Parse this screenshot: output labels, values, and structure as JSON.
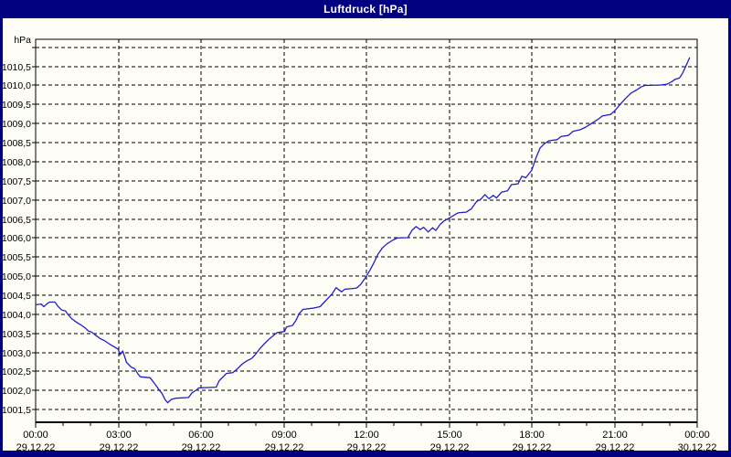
{
  "window": {
    "title": "Luftdruck [hPa]"
  },
  "colors": {
    "background": "#000080",
    "panel": "#FDFDF6",
    "grid": "#000000",
    "axis": "#000000",
    "label_text": "#000000",
    "title_text": "#FFFFFF",
    "line": "#2020C8"
  },
  "chart_data": {
    "type": "line",
    "title": "Luftdruck [hPa]",
    "unit_label": "hPa",
    "grid": "dashed",
    "legend_position": "none",
    "x_axis": {
      "min_hours": 0,
      "max_hours": 24,
      "major_tick_hours": 3,
      "minor_tick_hours": 1,
      "ticks": [
        {
          "t": 0,
          "time": "00:00",
          "date": "29.12.22"
        },
        {
          "t": 3,
          "time": "03:00",
          "date": "29.12.22"
        },
        {
          "t": 6,
          "time": "06:00",
          "date": "29.12.22"
        },
        {
          "t": 9,
          "time": "09:00",
          "date": "29.12.22"
        },
        {
          "t": 12,
          "time": "12:00",
          "date": "29.12.22"
        },
        {
          "t": 15,
          "time": "15:00",
          "date": "29.12.22"
        },
        {
          "t": 18,
          "time": "18:00",
          "date": "29.12.22"
        },
        {
          "t": 21,
          "time": "21:00",
          "date": "29.12.22"
        },
        {
          "t": 24,
          "time": "00:00",
          "date": "30.12.22"
        }
      ]
    },
    "y_axis": {
      "min": 1001.17,
      "max": 1011.21,
      "grid_step": 0.5,
      "ticks": [
        {
          "value": 1011.0,
          "label": ""
        },
        {
          "value": 1010.5,
          "label": "1010,5"
        },
        {
          "value": 1010.0,
          "label": "1010,0"
        },
        {
          "value": 1009.5,
          "label": "1009,5"
        },
        {
          "value": 1009.0,
          "label": "1009,0"
        },
        {
          "value": 1008.5,
          "label": "1008,5"
        },
        {
          "value": 1008.0,
          "label": "1008,0"
        },
        {
          "value": 1007.5,
          "label": "1007,5"
        },
        {
          "value": 1007.0,
          "label": "1007,0"
        },
        {
          "value": 1006.5,
          "label": "1006,5"
        },
        {
          "value": 1006.0,
          "label": "1006,0"
        },
        {
          "value": 1005.5,
          "label": "1005,5"
        },
        {
          "value": 1005.0,
          "label": "1005,0"
        },
        {
          "value": 1004.5,
          "label": "1004,5"
        },
        {
          "value": 1004.0,
          "label": "1004,0"
        },
        {
          "value": 1003.5,
          "label": "1003,5"
        },
        {
          "value": 1003.0,
          "label": "1003,0"
        },
        {
          "value": 1002.5,
          "label": "1002,5"
        },
        {
          "value": 1002.0,
          "label": "1002,0"
        },
        {
          "value": 1001.5,
          "label": "1001,5"
        }
      ]
    },
    "series": [
      {
        "name": "Luftdruck",
        "unit": "hPa",
        "points": [
          [
            0.0,
            1004.25
          ],
          [
            0.2,
            1004.27
          ],
          [
            0.3,
            1004.2
          ],
          [
            0.42,
            1004.28
          ],
          [
            0.5,
            1004.32
          ],
          [
            0.7,
            1004.32
          ],
          [
            0.82,
            1004.2
          ],
          [
            0.95,
            1004.11
          ],
          [
            1.08,
            1004.09
          ],
          [
            1.2,
            1003.97
          ],
          [
            1.32,
            1003.88
          ],
          [
            1.45,
            1003.81
          ],
          [
            1.55,
            1003.76
          ],
          [
            1.65,
            1003.72
          ],
          [
            1.8,
            1003.64
          ],
          [
            1.92,
            1003.56
          ],
          [
            2.02,
            1003.54
          ],
          [
            2.2,
            1003.44
          ],
          [
            2.35,
            1003.36
          ],
          [
            2.52,
            1003.3
          ],
          [
            2.68,
            1003.22
          ],
          [
            2.85,
            1003.15
          ],
          [
            3.0,
            1003.08
          ],
          [
            3.06,
            1002.94
          ],
          [
            3.16,
            1003.04
          ],
          [
            3.3,
            1002.74
          ],
          [
            3.46,
            1002.62
          ],
          [
            3.6,
            1002.57
          ],
          [
            3.7,
            1002.45
          ],
          [
            3.8,
            1002.36
          ],
          [
            4.15,
            1002.34
          ],
          [
            4.3,
            1002.2
          ],
          [
            4.45,
            1002.05
          ],
          [
            4.58,
            1001.93
          ],
          [
            4.7,
            1001.76
          ],
          [
            4.79,
            1001.68
          ],
          [
            4.92,
            1001.77
          ],
          [
            5.08,
            1001.8
          ],
          [
            5.55,
            1001.82
          ],
          [
            5.67,
            1001.94
          ],
          [
            5.84,
            1002.02
          ],
          [
            5.92,
            1002.07
          ],
          [
            6.55,
            1002.09
          ],
          [
            6.66,
            1002.26
          ],
          [
            6.83,
            1002.38
          ],
          [
            6.92,
            1002.45
          ],
          [
            7.15,
            1002.47
          ],
          [
            7.33,
            1002.58
          ],
          [
            7.5,
            1002.7
          ],
          [
            7.66,
            1002.78
          ],
          [
            7.83,
            1002.84
          ],
          [
            7.99,
            1002.96
          ],
          [
            8.12,
            1003.09
          ],
          [
            8.3,
            1003.23
          ],
          [
            8.5,
            1003.37
          ],
          [
            8.66,
            1003.46
          ],
          [
            8.76,
            1003.52
          ],
          [
            9.03,
            1003.55
          ],
          [
            9.1,
            1003.67
          ],
          [
            9.32,
            1003.71
          ],
          [
            9.45,
            1003.85
          ],
          [
            9.56,
            1004.02
          ],
          [
            9.7,
            1004.13
          ],
          [
            10.05,
            1004.16
          ],
          [
            10.32,
            1004.2
          ],
          [
            10.46,
            1004.31
          ],
          [
            10.6,
            1004.42
          ],
          [
            10.76,
            1004.54
          ],
          [
            10.9,
            1004.7
          ],
          [
            11.1,
            1004.59
          ],
          [
            11.22,
            1004.66
          ],
          [
            11.45,
            1004.67
          ],
          [
            11.65,
            1004.69
          ],
          [
            11.8,
            1004.79
          ],
          [
            12.0,
            1005.0
          ],
          [
            12.14,
            1005.17
          ],
          [
            12.28,
            1005.36
          ],
          [
            12.42,
            1005.58
          ],
          [
            12.58,
            1005.74
          ],
          [
            12.75,
            1005.85
          ],
          [
            12.97,
            1005.95
          ],
          [
            13.12,
            1006.0
          ],
          [
            13.5,
            1006.01
          ],
          [
            13.65,
            1006.2
          ],
          [
            13.8,
            1006.3
          ],
          [
            13.95,
            1006.22
          ],
          [
            14.08,
            1006.28
          ],
          [
            14.24,
            1006.16
          ],
          [
            14.4,
            1006.27
          ],
          [
            14.52,
            1006.2
          ],
          [
            14.68,
            1006.36
          ],
          [
            14.8,
            1006.44
          ],
          [
            15.0,
            1006.52
          ],
          [
            15.18,
            1006.6
          ],
          [
            15.32,
            1006.66
          ],
          [
            15.62,
            1006.68
          ],
          [
            15.8,
            1006.76
          ],
          [
            16.0,
            1006.96
          ],
          [
            16.15,
            1007.02
          ],
          [
            16.3,
            1007.14
          ],
          [
            16.45,
            1007.03
          ],
          [
            16.6,
            1007.12
          ],
          [
            16.72,
            1007.05
          ],
          [
            16.9,
            1007.2
          ],
          [
            17.12,
            1007.24
          ],
          [
            17.26,
            1007.4
          ],
          [
            17.5,
            1007.42
          ],
          [
            17.64,
            1007.62
          ],
          [
            17.78,
            1007.58
          ],
          [
            18.0,
            1007.78
          ],
          [
            18.15,
            1008.1
          ],
          [
            18.3,
            1008.36
          ],
          [
            18.45,
            1008.47
          ],
          [
            18.62,
            1008.55
          ],
          [
            18.92,
            1008.58
          ],
          [
            19.06,
            1008.66
          ],
          [
            19.32,
            1008.69
          ],
          [
            19.5,
            1008.8
          ],
          [
            19.76,
            1008.84
          ],
          [
            19.96,
            1008.91
          ],
          [
            20.16,
            1009.0
          ],
          [
            20.4,
            1009.11
          ],
          [
            20.56,
            1009.2
          ],
          [
            20.86,
            1009.24
          ],
          [
            21.0,
            1009.33
          ],
          [
            21.2,
            1009.5
          ],
          [
            21.4,
            1009.66
          ],
          [
            21.6,
            1009.8
          ],
          [
            21.8,
            1009.88
          ],
          [
            21.96,
            1009.96
          ],
          [
            22.1,
            1010.0
          ],
          [
            22.62,
            1010.01
          ],
          [
            22.9,
            1010.03
          ],
          [
            23.06,
            1010.09
          ],
          [
            23.2,
            1010.16
          ],
          [
            23.36,
            1010.2
          ],
          [
            23.46,
            1010.31
          ],
          [
            23.56,
            1010.46
          ],
          [
            23.66,
            1010.62
          ],
          [
            23.72,
            1010.72
          ]
        ]
      }
    ]
  }
}
